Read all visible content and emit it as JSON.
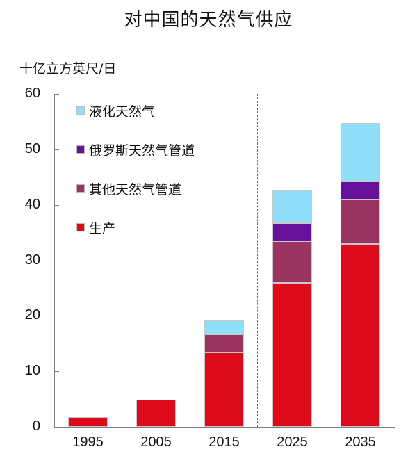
{
  "chart_data": {
    "type": "bar",
    "stacked": true,
    "title": "对中国的天然气供应",
    "ylabel": "十亿立方英尺/日",
    "xlabel": "",
    "ylim": [
      0,
      60
    ],
    "yticks": [
      0,
      10,
      20,
      30,
      40,
      50,
      60
    ],
    "grid": false,
    "legend_position": "upper-left-inside",
    "annotations": [
      "dashed vertical line between 2015 and 2025 (history vs projection)"
    ],
    "categories": [
      "1995",
      "2005",
      "2015",
      "2025",
      "2035"
    ],
    "series": [
      {
        "name": "生产",
        "color": "#dc0a1a",
        "values": [
          1.7,
          4.9,
          13.4,
          25.9,
          33.0
        ]
      },
      {
        "name": "其他天然气管道",
        "color": "#993360",
        "values": [
          0,
          0,
          3.2,
          7.5,
          7.9
        ]
      },
      {
        "name": "俄罗斯天然气管道",
        "color": "#661199",
        "values": [
          0,
          0,
          0,
          3.3,
          3.3
        ]
      },
      {
        "name": "液化天然气",
        "color": "#8fdffa",
        "values": [
          0,
          0,
          2.6,
          5.9,
          10.6
        ]
      }
    ],
    "totals": [
      1.7,
      4.9,
      19.2,
      42.6,
      54.8
    ]
  },
  "legend": [
    {
      "label": "液化天然气",
      "color": "#8fdffa"
    },
    {
      "label": "俄罗斯天然气管道",
      "color": "#661199"
    },
    {
      "label": "其他天然气管道",
      "color": "#993360"
    },
    {
      "label": "生产",
      "color": "#dc0a1a"
    }
  ],
  "yticks_labels": [
    "0",
    "10",
    "20",
    "30",
    "40",
    "50",
    "60"
  ]
}
